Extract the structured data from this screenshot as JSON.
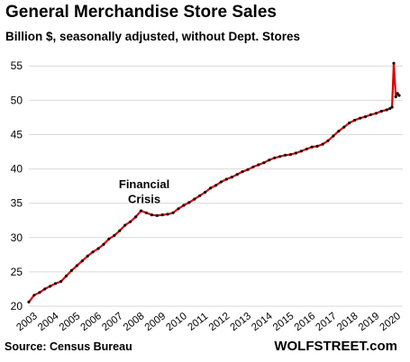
{
  "header": {
    "title": "General Merchandise Store Sales",
    "subtitle": "Billion $, seasonally adjusted, without Dept. Stores"
  },
  "footer": {
    "source": "Source: Census Bureau",
    "brand": "WOLFSTREET.com"
  },
  "colors": {
    "line": "#e00000",
    "markers": "#111111",
    "grid": "#d9d9d9",
    "text": "#000000"
  },
  "chart_data": {
    "type": "line",
    "title": "General Merchandise Store Sales",
    "subtitle": "Billion $, seasonally adjusted, without Dept. Stores",
    "xlabel": "",
    "ylabel": "",
    "xlim": [
      2003,
      2020.5
    ],
    "ylim": [
      20,
      57
    ],
    "yticks": [
      20,
      25,
      30,
      35,
      40,
      45,
      50,
      55
    ],
    "xtick_labels": [
      "2003",
      "2004",
      "2005",
      "2006",
      "2007",
      "2008",
      "2009",
      "2010",
      "2011",
      "2012",
      "2013",
      "2014",
      "2015",
      "2016",
      "2017",
      "2018",
      "2019",
      "2020"
    ],
    "grid": "horizontal",
    "annotations": [
      {
        "text": "Financial",
        "x": 2008.4,
        "y": 37.2
      },
      {
        "text": "Crisis",
        "x": 2008.4,
        "y": 35.0
      }
    ],
    "series": [
      {
        "name": "",
        "x": [
          2003.0,
          2003.25,
          2003.5,
          2003.75,
          2004.0,
          2004.25,
          2004.5,
          2004.75,
          2005.0,
          2005.25,
          2005.5,
          2005.75,
          2006.0,
          2006.25,
          2006.5,
          2006.75,
          2007.0,
          2007.25,
          2007.5,
          2007.75,
          2008.0,
          2008.25,
          2008.5,
          2008.75,
          2009.0,
          2009.25,
          2009.5,
          2009.75,
          2010.0,
          2010.25,
          2010.5,
          2010.75,
          2011.0,
          2011.25,
          2011.5,
          2011.75,
          2012.0,
          2012.25,
          2012.5,
          2012.75,
          2013.0,
          2013.25,
          2013.5,
          2013.75,
          2014.0,
          2014.25,
          2014.5,
          2014.75,
          2015.0,
          2015.25,
          2015.5,
          2015.75,
          2016.0,
          2016.25,
          2016.5,
          2016.75,
          2017.0,
          2017.25,
          2017.5,
          2017.75,
          2018.0,
          2018.25,
          2018.5,
          2018.75,
          2019.0,
          2019.25,
          2019.5,
          2019.75,
          2019.9,
          2020.0,
          2020.08,
          2020.17,
          2020.25,
          2020.33
        ],
        "y": [
          20.6,
          21.6,
          22.0,
          22.5,
          22.9,
          23.3,
          23.6,
          24.4,
          25.2,
          25.9,
          26.6,
          27.3,
          27.9,
          28.4,
          29.0,
          29.8,
          30.3,
          31.0,
          31.8,
          32.3,
          33.0,
          33.9,
          33.6,
          33.3,
          33.2,
          33.3,
          33.4,
          33.6,
          34.2,
          34.7,
          35.1,
          35.6,
          36.1,
          36.6,
          37.2,
          37.6,
          38.1,
          38.5,
          38.8,
          39.2,
          39.6,
          39.9,
          40.3,
          40.6,
          40.9,
          41.3,
          41.6,
          41.8,
          42.0,
          42.1,
          42.3,
          42.6,
          42.9,
          43.2,
          43.3,
          43.6,
          44.1,
          44.8,
          45.5,
          46.1,
          46.7,
          47.1,
          47.4,
          47.6,
          47.9,
          48.1,
          48.4,
          48.6,
          48.8,
          49.0,
          55.4,
          50.5,
          51.0,
          50.7
        ]
      }
    ]
  }
}
